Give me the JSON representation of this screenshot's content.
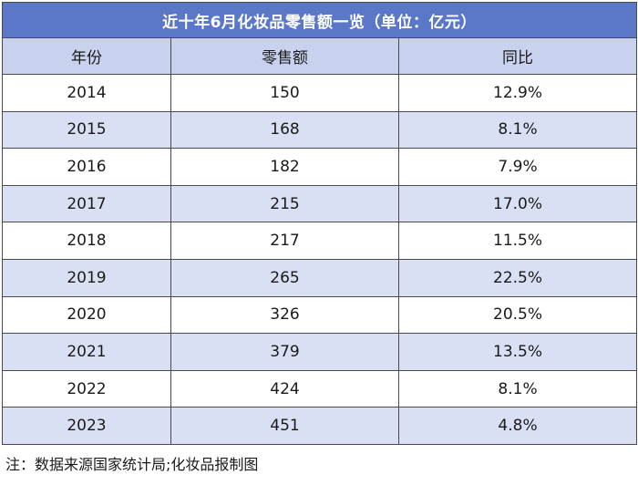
{
  "chart_data": {
    "type": "table",
    "title": "近十年6月化妆品零售额一览（单位：亿元）",
    "columns": [
      "年份",
      "零售额",
      "同比"
    ],
    "rows": [
      [
        "2014",
        "150",
        "12.9%"
      ],
      [
        "2015",
        "168",
        "8.1%"
      ],
      [
        "2016",
        "182",
        "7.9%"
      ],
      [
        "2017",
        "215",
        "17.0%"
      ],
      [
        "2018",
        "217",
        "11.5%"
      ],
      [
        "2019",
        "265",
        "22.5%"
      ],
      [
        "2020",
        "326",
        "20.5%"
      ],
      [
        "2021",
        "379",
        "13.5%"
      ],
      [
        "2022",
        "424",
        "8.1%"
      ],
      [
        "2023",
        "451",
        "4.8%"
      ]
    ],
    "footnote": "注：数据来源国家统计局;化妆品报制图"
  },
  "colors": {
    "title_bg": "#5b77c8",
    "header_bg": "#c8d2ee",
    "stripe_bg": "#d9e0f3"
  }
}
